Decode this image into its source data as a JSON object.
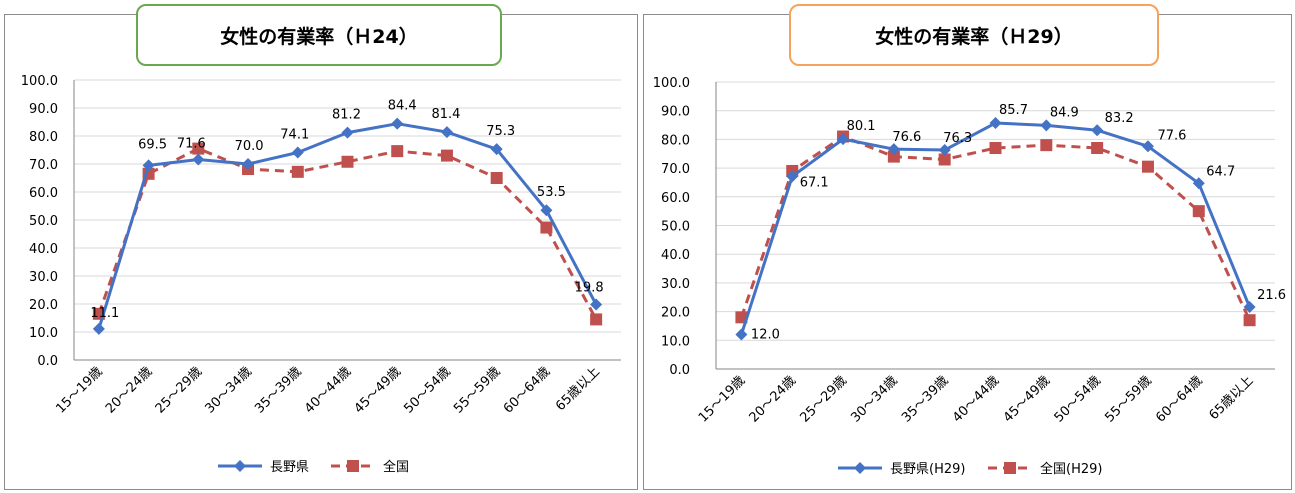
{
  "colors": {
    "nagano": "#4472c4",
    "national": "#c0504d",
    "grid": "#d9d9d9",
    "axis": "#868686"
  },
  "chart_data": [
    {
      "type": "line",
      "title": "女性の有業率（Ｈ24）",
      "categories": [
        "15～19歳",
        "20～24歳",
        "25～29歳",
        "30～34歳",
        "35～39歳",
        "40～44歳",
        "45～49歳",
        "50～54歳",
        "55～59歳",
        "60～64歳",
        "65歳以上"
      ],
      "yticks": [
        "0.0",
        "10.0",
        "20.0",
        "30.0",
        "40.0",
        "50.0",
        "60.0",
        "70.0",
        "80.0",
        "90.0",
        "100.0"
      ],
      "ylim": [
        0,
        100
      ],
      "grid": true,
      "legend_position": "bottom",
      "series": [
        {
          "name": "長野県",
          "marker": "diamond",
          "line": "solid",
          "values": [
            11.1,
            69.5,
            71.6,
            70.0,
            74.1,
            81.2,
            84.4,
            81.4,
            75.3,
            53.5,
            19.8
          ],
          "labels": [
            "11.1",
            "69.5",
            "71.6",
            "70.0",
            "74.1",
            "81.2",
            "84.4",
            "81.4",
            "75.3",
            "53.5",
            "19.8"
          ]
        },
        {
          "name": "全国",
          "marker": "square",
          "line": "dashed",
          "values": [
            16.5,
            66.5,
            75.5,
            68.2,
            67.2,
            70.8,
            74.6,
            73.0,
            65.0,
            47.3,
            14.5
          ]
        }
      ]
    },
    {
      "type": "line",
      "title": "女性の有業率（Ｈ29）",
      "categories": [
        "15～19歳",
        "20～24歳",
        "25～29歳",
        "30～34歳",
        "35～39歳",
        "40～44歳",
        "45～49歳",
        "50～54歳",
        "55～59歳",
        "60～64歳",
        "65歳以上"
      ],
      "yticks": [
        "0.0",
        "10.0",
        "20.0",
        "30.0",
        "40.0",
        "50.0",
        "60.0",
        "70.0",
        "80.0",
        "90.0",
        "100.0"
      ],
      "ylim": [
        0,
        100
      ],
      "grid": true,
      "legend_position": "bottom",
      "series": [
        {
          "name": "長野県(H29)",
          "marker": "diamond",
          "line": "solid",
          "values": [
            12.0,
            67.1,
            80.1,
            76.6,
            76.3,
            85.7,
            84.9,
            83.2,
            77.6,
            64.7,
            21.6
          ],
          "labels": [
            "12.0",
            "67.1",
            "80.1",
            "76.6",
            "76.3",
            "85.7",
            "84.9",
            "83.2",
            "77.6",
            "64.7",
            "21.6"
          ]
        },
        {
          "name": "全国(H29)",
          "marker": "square",
          "line": "dashed",
          "values": [
            18.0,
            69.0,
            81.0,
            74.0,
            73.0,
            77.0,
            78.0,
            77.0,
            70.5,
            55.0,
            17.0
          ]
        }
      ]
    }
  ]
}
